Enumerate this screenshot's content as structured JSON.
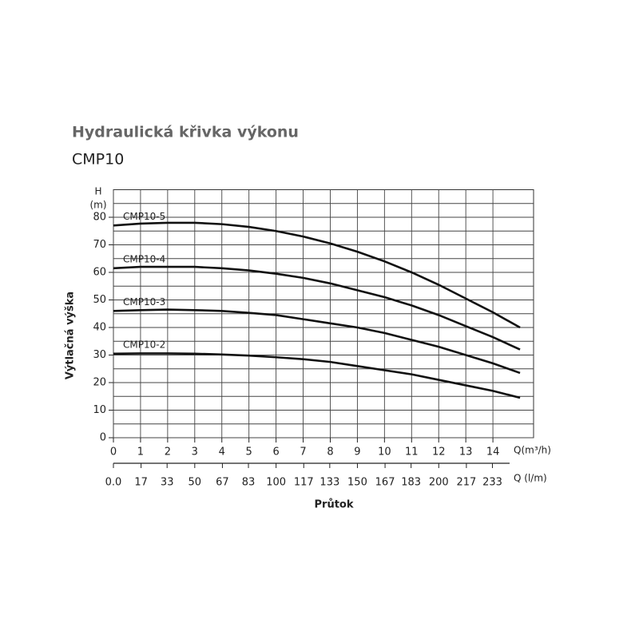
{
  "chart_data": {
    "type": "line",
    "title": "Hydraulická křivka výkonu",
    "subtitle": "CMP10",
    "y_label": "Výtlačná výška",
    "y_unit_label": "H",
    "y_unit_label2": "(m)",
    "x_label": "Průtok",
    "x_unit_label": "Q(m³/h)",
    "x2_unit_label": "Q (l/m)",
    "x": [
      0,
      1,
      2,
      3,
      4,
      5,
      6,
      7,
      8,
      9,
      10,
      11,
      12,
      13,
      14,
      15
    ],
    "series": [
      {
        "name": "CMP10-5",
        "color": "#111111",
        "values": [
          77,
          77.7,
          78,
          78,
          77.5,
          76.5,
          75,
          73,
          70.5,
          67.5,
          64,
          60,
          55.5,
          50.5,
          45.5,
          40
        ]
      },
      {
        "name": "CMP10-4",
        "color": "#111111",
        "values": [
          61.5,
          62,
          62,
          62,
          61.5,
          60.7,
          59.5,
          58,
          56,
          53.5,
          51,
          48,
          44.5,
          40.5,
          36.5,
          32
        ]
      },
      {
        "name": "CMP10-3",
        "color": "#111111",
        "values": [
          46,
          46.3,
          46.5,
          46.3,
          46,
          45.3,
          44.5,
          43,
          41.5,
          40,
          38,
          35.5,
          33,
          30,
          27,
          23.5
        ]
      },
      {
        "name": "CMP10-2",
        "color": "#111111",
        "values": [
          30.5,
          30.6,
          30.6,
          30.5,
          30.2,
          29.8,
          29.2,
          28.5,
          27.5,
          26,
          24.5,
          23,
          21,
          19,
          17,
          14.5
        ]
      }
    ],
    "xlim": [
      0,
      15.5
    ],
    "xticks": [
      0,
      1,
      2,
      3,
      4,
      5,
      6,
      7,
      8,
      9,
      10,
      11,
      12,
      13,
      14
    ],
    "x2lim": [
      0,
      258.3
    ],
    "x2ticks": [
      {
        "value": 0,
        "label": "0.0"
      },
      17,
      33,
      50,
      67,
      83,
      100,
      117,
      133,
      150,
      167,
      183,
      200,
      217,
      233
    ],
    "ylim": [
      0,
      90
    ],
    "yticks": [
      0,
      10,
      20,
      30,
      40,
      50,
      60,
      70,
      80
    ],
    "minor_yticks": [
      5,
      15,
      25,
      35,
      45,
      55,
      65,
      75,
      85
    ],
    "grid": true
  }
}
